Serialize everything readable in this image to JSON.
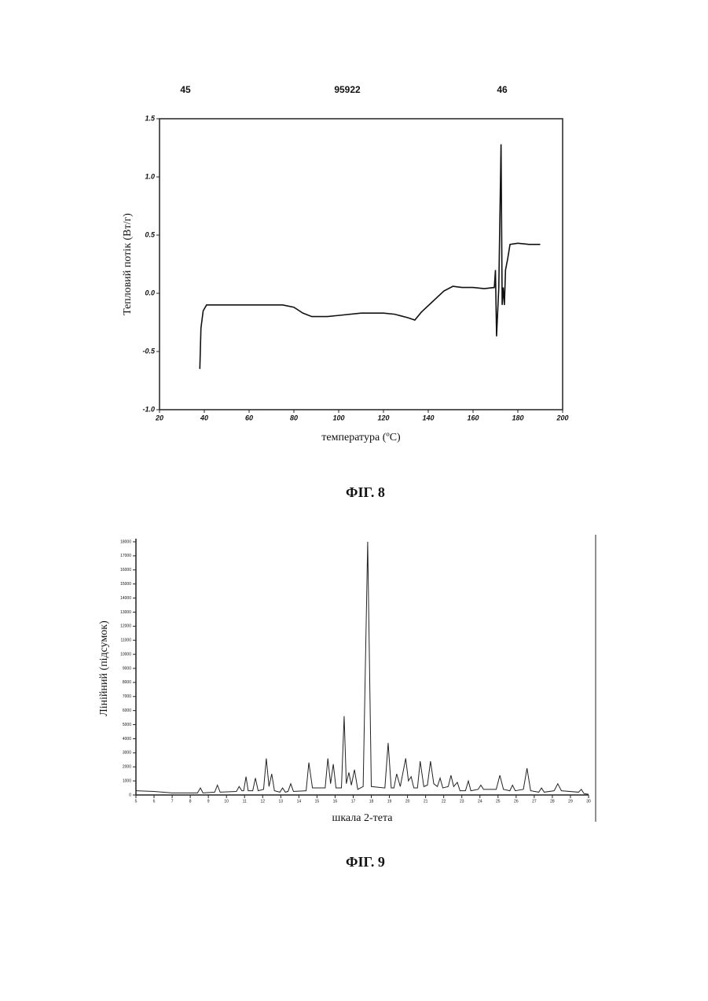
{
  "header": {
    "left": "45",
    "center": "95922",
    "right": "46"
  },
  "chart_data": [
    {
      "type": "line",
      "caption": "ФІГ. 8",
      "x_label": "температура (ºC)",
      "y_label": "Тепловий потік (Вт/г)",
      "x": [
        38,
        38.5,
        39.5,
        41,
        45,
        60,
        75,
        80,
        84,
        88,
        95,
        100,
        110,
        120,
        125,
        131,
        134,
        137,
        142,
        147,
        151,
        155,
        160,
        165,
        169.5,
        170,
        170.5,
        171.5,
        172.5,
        173,
        173.5,
        174,
        174.5,
        175.5,
        176.5,
        180,
        185,
        190
      ],
      "values": [
        -0.65,
        -0.3,
        -0.15,
        -0.1,
        -0.1,
        -0.1,
        -0.1,
        -0.12,
        -0.17,
        -0.2,
        -0.2,
        -0.19,
        -0.17,
        -0.17,
        -0.18,
        -0.21,
        -0.23,
        -0.16,
        -0.07,
        0.02,
        0.06,
        0.05,
        0.05,
        0.04,
        0.05,
        0.2,
        -0.37,
        0.05,
        1.28,
        -0.1,
        0.05,
        -0.1,
        0.2,
        0.3,
        0.42,
        0.43,
        0.42,
        0.42
      ],
      "color": "#111111",
      "xlim": [
        20,
        200
      ],
      "xticks": [
        20,
        40,
        60,
        80,
        100,
        120,
        140,
        160,
        180,
        200
      ],
      "ylim": [
        -1,
        1.5
      ],
      "yticks": [
        {
          "value": -1,
          "label": "-1.0"
        },
        {
          "value": -0.5,
          "label": "-0.5"
        },
        {
          "value": 0,
          "label": "0.0"
        },
        {
          "value": 0.5,
          "label": "0.5"
        },
        {
          "value": 1,
          "label": "1.0"
        },
        {
          "value": 1.5,
          "label": "1.5"
        }
      ]
    },
    {
      "type": "line",
      "caption": "ФІГ. 9",
      "x_label": "шкала 2-тета",
      "y_label": "Лінійний (підсумок)",
      "x": [
        5,
        6,
        7,
        8,
        8.4,
        8.56,
        8.7,
        9.35,
        9.5,
        9.65,
        10.55,
        10.7,
        10.85,
        10.95,
        11.08,
        11.2,
        11.45,
        11.6,
        11.75,
        12.05,
        12.2,
        12.35,
        12.5,
        12.65,
        12.95,
        13.1,
        13.25,
        13.4,
        13.55,
        13.7,
        14.4,
        14.55,
        14.75,
        15.45,
        15.6,
        15.75,
        15.9,
        16.05,
        16.35,
        16.5,
        16.62,
        16.76,
        16.9,
        17.07,
        17.25,
        17.55,
        17.8,
        18.0,
        18.75,
        18.93,
        19.1,
        19.25,
        19.4,
        19.6,
        19.9,
        20.05,
        20.2,
        20.35,
        20.55,
        20.7,
        20.9,
        21.1,
        21.27,
        21.45,
        21.65,
        21.8,
        21.95,
        22.25,
        22.4,
        22.55,
        22.75,
        22.9,
        23.2,
        23.36,
        23.5,
        23.9,
        24.05,
        24.2,
        24.9,
        25.1,
        25.3,
        25.65,
        25.8,
        25.95,
        26.4,
        26.6,
        26.8,
        27.25,
        27.4,
        27.55,
        28.1,
        28.3,
        28.5,
        29.45,
        29.6,
        29.75,
        30
      ],
      "values": [
        300,
        250,
        150,
        150,
        150,
        500,
        150,
        200,
        700,
        200,
        250,
        600,
        300,
        300,
        1300,
        300,
        300,
        1200,
        300,
        400,
        2600,
        600,
        1500,
        300,
        200,
        500,
        200,
        250,
        800,
        250,
        300,
        2300,
        500,
        500,
        2600,
        800,
        2200,
        500,
        500,
        5600,
        800,
        1600,
        700,
        1800,
        400,
        600,
        18000,
        600,
        500,
        3700,
        500,
        500,
        1500,
        600,
        2600,
        1000,
        1300,
        500,
        500,
        2400,
        600,
        700,
        2400,
        800,
        600,
        1200,
        500,
        600,
        1400,
        600,
        900,
        300,
        300,
        1000,
        300,
        400,
        700,
        400,
        400,
        1400,
        400,
        300,
        700,
        300,
        400,
        1900,
        300,
        200,
        500,
        200,
        300,
        800,
        300,
        200,
        400,
        100,
        50
      ],
      "color": "#222222",
      "xlim": [
        5,
        30
      ],
      "xticks": [
        5,
        6,
        7,
        8,
        9,
        10,
        11,
        12,
        13,
        14,
        15,
        16,
        17,
        18,
        19,
        20,
        21,
        22,
        23,
        24,
        25,
        26,
        27,
        28,
        29,
        30
      ],
      "ylim": [
        0,
        18000
      ],
      "yticks": [
        0,
        1000,
        2000,
        3000,
        4000,
        5000,
        6000,
        7000,
        8000,
        9000,
        10000,
        11000,
        12000,
        13000,
        14000,
        15000,
        16000,
        17000,
        18000
      ]
    }
  ]
}
